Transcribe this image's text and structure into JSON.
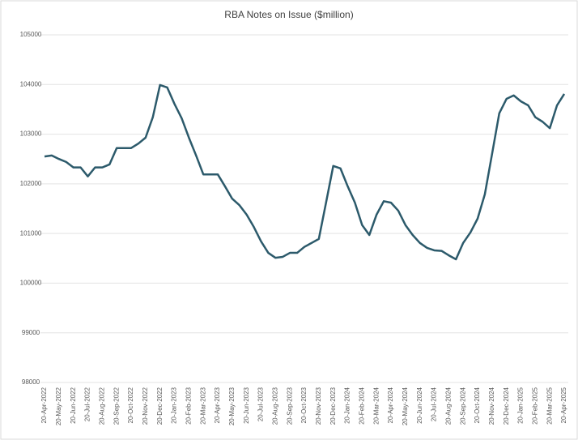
{
  "chart_data": {
    "type": "line",
    "title": "RBA Notes on Issue ($million)",
    "categories": [
      "20-Apr-2022",
      null,
      "20-May-2022",
      null,
      "20-Jun-2022",
      null,
      "20-Jul-2022",
      null,
      "20-Aug-2022",
      null,
      "20-Sep-2022",
      null,
      "20-Oct-2022",
      null,
      "20-Nov-2022",
      null,
      "20-Dec-2022",
      null,
      "20-Jan-2023",
      null,
      "20-Feb-2023",
      null,
      "20-Mar-2023",
      null,
      "20-Apr-2023",
      null,
      "20-May-2023",
      null,
      "20-Jun-2023",
      null,
      "20-Jul-2023",
      null,
      "20-Aug-2023",
      null,
      "20-Sep-2023",
      null,
      "20-Oct-2023",
      null,
      "20-Nov-2023",
      null,
      "20-Dec-2023",
      null,
      "20-Jan-2024",
      null,
      "20-Feb-2024",
      null,
      "20-Mar-2024",
      null,
      "20-Apr-2024",
      null,
      "20-May-2024",
      null,
      "20-Jun-2024",
      null,
      "20-Jul-2024",
      null,
      "20-Aug-2024",
      null,
      "20-Sep-2024",
      null,
      "20-Oct-2024",
      null,
      "20-Nov-2024",
      null,
      "20-Dec-2024",
      null,
      "20-Jan-2025",
      null,
      "20-Feb-2025",
      null,
      "20-Mar-2025",
      null,
      "20-Apr-2025"
    ],
    "series": [
      {
        "name": "RBA Notes on Issue",
        "color": "#2c5a6b",
        "values": [
          102550,
          102570,
          102500,
          102440,
          102330,
          102330,
          102150,
          102330,
          102330,
          102390,
          102720,
          102720,
          102720,
          102810,
          102930,
          103340,
          103990,
          103940,
          103610,
          103320,
          102930,
          102570,
          102190,
          102190,
          102190,
          101950,
          101700,
          101570,
          101380,
          101130,
          100840,
          100610,
          100510,
          100530,
          100610,
          100610,
          100730,
          100810,
          100890,
          101620,
          102360,
          102310,
          101950,
          101620,
          101170,
          100970,
          101380,
          101650,
          101620,
          101460,
          101170,
          100970,
          100810,
          100710,
          100660,
          100650,
          100560,
          100480,
          100810,
          101020,
          101300,
          101790,
          102600,
          103420,
          103710,
          103780,
          103660,
          103580,
          103340,
          103250,
          103120,
          103580,
          103810
        ]
      }
    ],
    "ylim": [
      98000,
      105000
    ],
    "yticks": [
      98000,
      99000,
      100000,
      101000,
      102000,
      103000,
      104000,
      105000
    ],
    "grid": true
  }
}
